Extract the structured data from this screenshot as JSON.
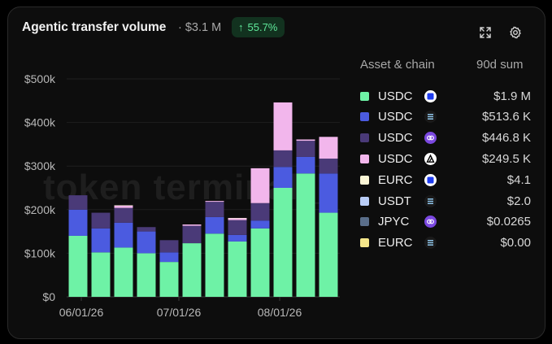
{
  "header": {
    "title": "Agentic transfer volume",
    "total": "· $3.1 M",
    "change": "55.7%"
  },
  "watermark": "token terminal_",
  "legend": {
    "col_asset": "Asset & chain",
    "col_sum": "90d sum",
    "items": [
      {
        "asset": "USDC",
        "chain_icon": "solana-square-icon",
        "value": "$1.9 M",
        "color": "#6ef2a6"
      },
      {
        "asset": "USDC",
        "chain_icon": "stacked-lines-icon",
        "value": "$513.6 K",
        "color": "#4b5be0"
      },
      {
        "asset": "USDC",
        "chain_icon": "chain-link-icon",
        "value": "$446.8 K",
        "color": "#4a3a78"
      },
      {
        "asset": "USDC",
        "chain_icon": "triangle-logo-icon",
        "value": "$249.5 K",
        "color": "#f2b6ec"
      },
      {
        "asset": "EURC",
        "chain_icon": "solana-square-icon",
        "value": "$4.1",
        "color": "#fbf6d6"
      },
      {
        "asset": "USDT",
        "chain_icon": "stacked-lines-icon",
        "value": "$2.0",
        "color": "#b9cdf7"
      },
      {
        "asset": "JPYC",
        "chain_icon": "chain-link-icon",
        "value": "$0.0265",
        "color": "#5a6e8a"
      },
      {
        "asset": "EURC",
        "chain_icon": "stacked-lines-icon",
        "value": "$0.00",
        "color": "#f4e68a"
      }
    ]
  },
  "chart_data": {
    "type": "bar",
    "stacked": true,
    "x": [
      "2026-05-31",
      "2026-06-07",
      "2026-06-14",
      "2026-06-21",
      "2026-06-28",
      "2026-07-05",
      "2026-07-12",
      "2026-07-19",
      "2026-07-26",
      "2026-08-02",
      "2026-08-09",
      "2026-08-16"
    ],
    "x_ticks": [
      "06/01/26",
      "07/01/26",
      "08/01/26"
    ],
    "y_ticks": [
      "$0",
      "$100k",
      "$200k",
      "$300k",
      "$400k",
      "$500k"
    ],
    "ylim": [
      0,
      500000
    ],
    "grid": true,
    "legend_position": "right",
    "series": [
      {
        "name": "USDC",
        "color": "#6ef2a6",
        "values": [
          140000,
          102000,
          113000,
          100000,
          80000,
          123000,
          145000,
          127000,
          157000,
          250000,
          283000,
          193000
        ]
      },
      {
        "name": "USDC",
        "color": "#4b5be0",
        "values": [
          60000,
          55000,
          57000,
          50000,
          22000,
          0,
          38000,
          15000,
          18000,
          48000,
          38000,
          90000
        ]
      },
      {
        "name": "USDC",
        "color": "#4a3a78",
        "values": [
          33000,
          36000,
          34000,
          10000,
          28000,
          40000,
          35000,
          34000,
          40000,
          38000,
          37000,
          34000
        ]
      },
      {
        "name": "USDC",
        "color": "#f2b6ec",
        "values": [
          0,
          0,
          5000,
          0,
          0,
          3000,
          2000,
          4000,
          80000,
          110000,
          3000,
          50000
        ]
      },
      {
        "name": "EURC",
        "color": "#fbf6d6",
        "values": [
          0,
          0,
          1000,
          0,
          0,
          0,
          0,
          1000,
          0,
          0,
          0,
          0
        ]
      }
    ]
  }
}
